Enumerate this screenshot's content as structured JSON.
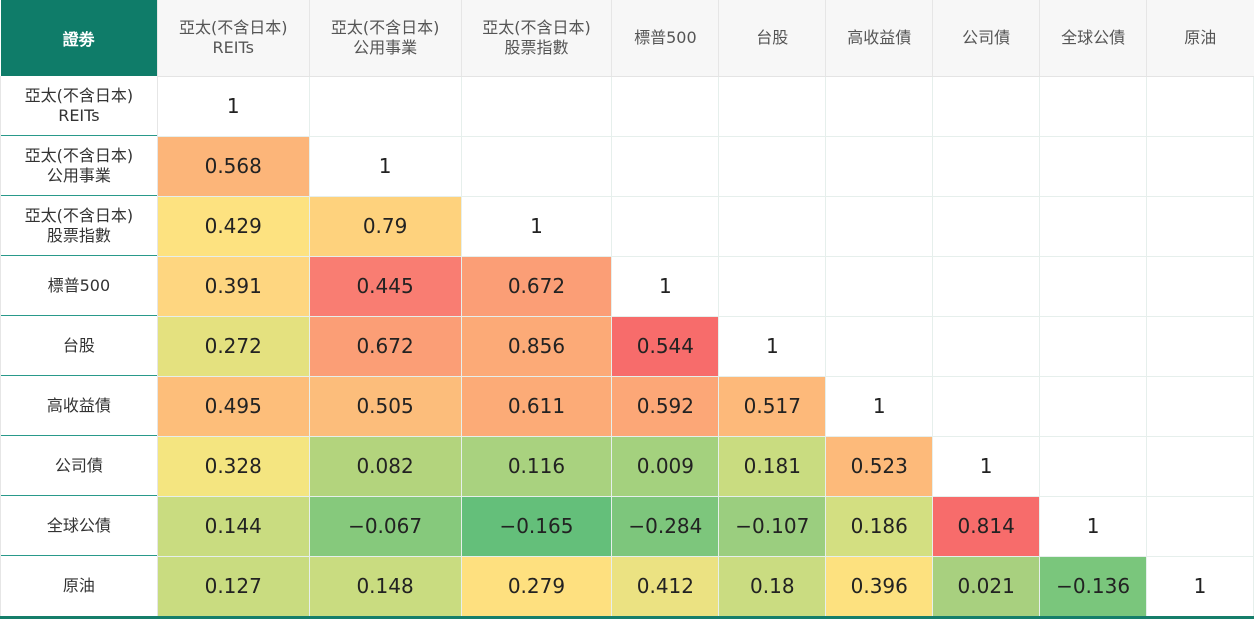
{
  "table": {
    "corner_label": "證劵",
    "columns": [
      "亞太(不含日本)\nREITs",
      "亞太(不含日本)\n公用事業",
      "亞太(不含日本)\n股票指數",
      "標普500",
      "台股",
      "高收益債",
      "公司債",
      "全球公債",
      "原油"
    ],
    "rows": [
      {
        "label": "亞太(不含日本)\nREITs",
        "values": [
          "1"
        ]
      },
      {
        "label": "亞太(不含日本)\n公用事業",
        "values": [
          "0.568",
          "1"
        ]
      },
      {
        "label": "亞太(不含日本)\n股票指數",
        "values": [
          "0.429",
          "0.79",
          "1"
        ]
      },
      {
        "label": "標普500",
        "values": [
          "0.391",
          "0.445",
          "0.672",
          "1"
        ]
      },
      {
        "label": "台股",
        "values": [
          "0.272",
          "0.672",
          "0.856",
          "0.544",
          "1"
        ]
      },
      {
        "label": "高收益債",
        "values": [
          "0.495",
          "0.505",
          "0.611",
          "0.592",
          "0.517",
          "1"
        ]
      },
      {
        "label": "公司債",
        "values": [
          "0.328",
          "0.082",
          "0.116",
          "0.009",
          "0.181",
          "0.523",
          "1"
        ]
      },
      {
        "label": "全球公債",
        "values": [
          "0.144",
          "−0.067",
          "−0.165",
          "−0.284",
          "−0.107",
          "0.186",
          "0.814",
          "1"
        ]
      },
      {
        "label": "原油",
        "values": [
          "0.127",
          "0.148",
          "0.279",
          "0.412",
          "0.18",
          "0.396",
          "0.021",
          "−0.136",
          "1"
        ]
      }
    ],
    "colors": {
      "header_accent": "#0f7c69",
      "row_divider": "#29998a",
      "cell_colors": [
        [
          "#ffffff"
        ],
        [
          "#fcb579",
          "#ffffff"
        ],
        [
          "#fde280",
          "#fed27d",
          "#ffffff"
        ],
        [
          "#fed680",
          "#f97d72",
          "#fb9e76",
          "#ffffff"
        ],
        [
          "#e4e17f",
          "#fb9e76",
          "#fcaa77",
          "#f76c6b",
          "#ffffff"
        ],
        [
          "#fdbe7a",
          "#fcbd7b",
          "#fcab77",
          "#fca777",
          "#fdb97a",
          "#ffffff"
        ],
        [
          "#f4e580",
          "#b3d47d",
          "#a9d27f",
          "#a4d17e",
          "#c9dc80",
          "#fdba7a",
          "#ffffff"
        ],
        [
          "#c9dc80",
          "#86c97c",
          "#64bf7a",
          "#7dc67c",
          "#9bce7f",
          "#d3df81",
          "#f76c6b",
          "#ffffff"
        ],
        [
          "#c9dc80",
          "#c9dc80",
          "#fee07f",
          "#ebe282",
          "#cadc81",
          "#fde17f",
          "#a8d07f",
          "#7ac67c",
          "#ffffff"
        ]
      ]
    }
  }
}
